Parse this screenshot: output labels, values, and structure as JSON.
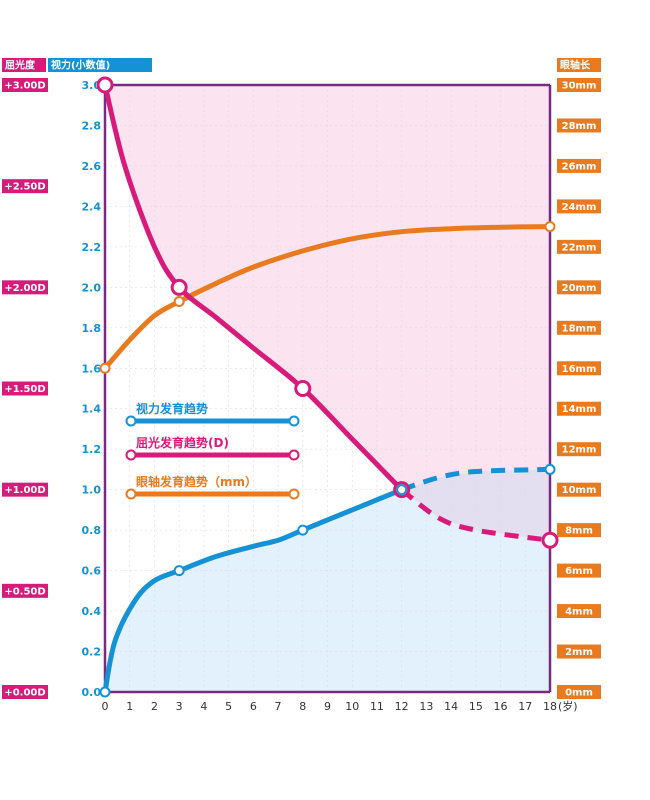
{
  "colors": {
    "vision": "#1592d5",
    "refraction": "#d81b7a",
    "axial": "#ea7a1e",
    "frame": "#7b2a82",
    "refraction_fill": "#fbe3f0",
    "vision_fill": "#e2f1fb",
    "overlap_fill": "#e3def0",
    "grid": "#dddddd"
  },
  "chart_data": {
    "type": "line",
    "axes": {
      "left_outer": {
        "label": "屈光度",
        "ticks": [
          "+0.00D",
          "+0.50D",
          "+1.00D",
          "+1.50D",
          "+2.00D",
          "+2.50D",
          "+3.00D"
        ],
        "range": [
          0,
          3
        ]
      },
      "left_inner": {
        "label": "视力(小数值)",
        "ticks": [
          "0.0",
          "0.2",
          "0.4",
          "0.6",
          "0.8",
          "1.0",
          "1.2",
          "1.4",
          "1.6",
          "1.8",
          "2.0",
          "2.2",
          "2.4",
          "2.6",
          "2.8",
          "3.0"
        ],
        "range": [
          0,
          3
        ]
      },
      "right": {
        "label": "眼轴长",
        "ticks": [
          "0mm",
          "2mm",
          "4mm",
          "6mm",
          "8mm",
          "10mm",
          "12mm",
          "14mm",
          "16mm",
          "18mm",
          "20mm",
          "22mm",
          "24mm",
          "26mm",
          "28mm",
          "30mm"
        ],
        "range": [
          0,
          30
        ]
      },
      "x": {
        "ticks": [
          "0",
          "1",
          "2",
          "3",
          "4",
          "5",
          "6",
          "7",
          "8",
          "9",
          "10",
          "11",
          "12",
          "13",
          "14",
          "15",
          "16",
          "17",
          "18"
        ],
        "unit": "(岁)",
        "range": [
          0,
          18
        ]
      }
    },
    "grid": true,
    "legend_placement": "center-left",
    "series": [
      {
        "name": "视力发育趋势",
        "axis": "left",
        "points": [
          [
            0,
            0.0
          ],
          [
            0.4,
            0.25
          ],
          [
            1.2,
            0.45
          ],
          [
            2,
            0.55
          ],
          [
            3,
            0.6
          ],
          [
            4.5,
            0.67
          ],
          [
            6,
            0.72
          ],
          [
            7,
            0.75
          ],
          [
            8,
            0.8
          ],
          [
            10,
            0.9
          ],
          [
            12,
            1.0
          ]
        ],
        "projected": [
          [
            12,
            1.0
          ],
          [
            13.5,
            1.06
          ],
          [
            15,
            1.09
          ],
          [
            18,
            1.1
          ]
        ],
        "markers": [
          0,
          3,
          8,
          12,
          18
        ]
      },
      {
        "name": "屈光发育趋势(D)",
        "axis": "left",
        "points": [
          [
            0,
            3.0
          ],
          [
            0.8,
            2.6
          ],
          [
            2,
            2.2
          ],
          [
            3,
            2.0
          ],
          [
            4.5,
            1.85
          ],
          [
            6,
            1.7
          ],
          [
            8,
            1.5
          ],
          [
            10,
            1.25
          ],
          [
            12,
            1.0
          ]
        ],
        "projected": [
          [
            12,
            1.0
          ],
          [
            13.5,
            0.86
          ],
          [
            15,
            0.8
          ],
          [
            18,
            0.75
          ]
        ],
        "markers": [
          0,
          3,
          8,
          12,
          18
        ]
      },
      {
        "name": "眼轴发育趋势（mm）",
        "axis": "right",
        "points": [
          [
            0,
            16
          ],
          [
            1,
            17.4
          ],
          [
            2,
            18.6
          ],
          [
            3,
            19.3
          ],
          [
            4.5,
            20.2
          ],
          [
            6,
            21
          ],
          [
            8,
            21.8
          ],
          [
            10,
            22.4
          ],
          [
            12,
            22.75
          ],
          [
            14,
            22.9
          ],
          [
            16,
            22.97
          ],
          [
            18,
            23
          ]
        ],
        "markers": [
          0,
          3,
          18
        ]
      }
    ]
  }
}
